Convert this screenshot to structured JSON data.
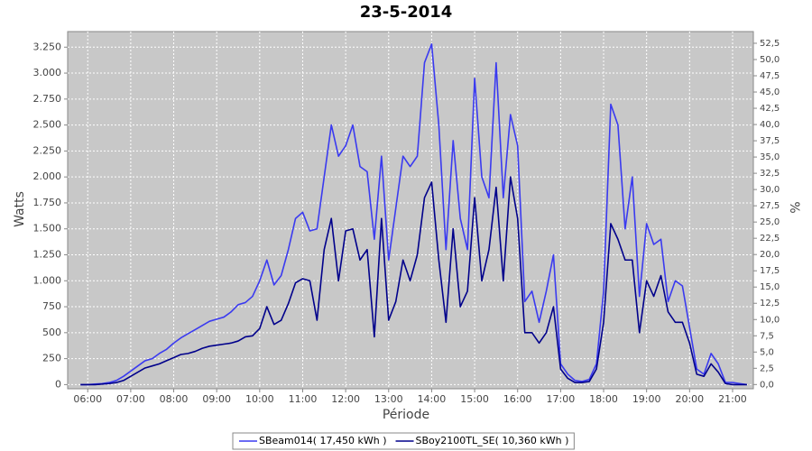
{
  "chart_data": {
    "type": "line",
    "title": "23-5-2014",
    "x_label": "Période",
    "y_label": "Watts",
    "y2_label": "%",
    "x": [
      "05:50",
      "06:00",
      "06:10",
      "06:20",
      "06:30",
      "06:40",
      "06:50",
      "07:00",
      "07:10",
      "07:20",
      "07:30",
      "07:40",
      "07:50",
      "08:00",
      "08:10",
      "08:20",
      "08:30",
      "08:40",
      "08:50",
      "09:00",
      "09:10",
      "09:20",
      "09:30",
      "09:40",
      "09:50",
      "10:00",
      "10:10",
      "10:20",
      "10:30",
      "10:40",
      "10:50",
      "11:00",
      "11:10",
      "11:20",
      "11:30",
      "11:40",
      "11:50",
      "12:00",
      "12:10",
      "12:20",
      "12:30",
      "12:40",
      "12:50",
      "13:00",
      "13:10",
      "13:20",
      "13:30",
      "13:40",
      "13:50",
      "14:00",
      "14:10",
      "14:20",
      "14:30",
      "14:40",
      "14:50",
      "15:00",
      "15:10",
      "15:20",
      "15:30",
      "15:40",
      "15:50",
      "16:00",
      "16:10",
      "16:20",
      "16:30",
      "16:40",
      "16:50",
      "17:00",
      "17:10",
      "17:20",
      "17:30",
      "17:40",
      "17:50",
      "18:00",
      "18:10",
      "18:20",
      "18:30",
      "18:40",
      "18:50",
      "19:00",
      "19:10",
      "19:20",
      "19:30",
      "19:40",
      "19:50",
      "20:00",
      "20:10",
      "20:20",
      "20:30",
      "20:40",
      "20:50",
      "21:00",
      "21:10",
      "21:20"
    ],
    "series": [
      {
        "name": "SBeam014( 17,450 kWh )",
        "color": "#3a3af0",
        "values": [
          0,
          0,
          5,
          10,
          20,
          40,
          80,
          130,
          180,
          230,
          250,
          300,
          340,
          400,
          450,
          490,
          530,
          570,
          610,
          630,
          650,
          700,
          770,
          790,
          850,
          1000,
          1200,
          960,
          1050,
          1300,
          1600,
          1660,
          1480,
          1500,
          2000,
          2500,
          2200,
          2300,
          2500,
          2100,
          2050,
          1400,
          2200,
          1200,
          1700,
          2200,
          2100,
          2200,
          3100,
          3280,
          2500,
          1300,
          2350,
          1600,
          1300,
          2950,
          2000,
          1800,
          3100,
          1800,
          2600,
          2300,
          800,
          900,
          600,
          900,
          1250,
          200,
          100,
          40,
          30,
          50,
          200,
          900,
          2700,
          2500,
          1500,
          2000,
          850,
          1550,
          1350,
          1400,
          800,
          1000,
          950,
          550,
          150,
          100,
          300,
          200,
          20,
          20,
          10,
          0
        ]
      },
      {
        "name": "SBoy2100TL_SE( 10,360 kWh )",
        "color": "#00008b",
        "values": [
          0,
          0,
          0,
          5,
          10,
          20,
          40,
          80,
          120,
          160,
          180,
          200,
          230,
          260,
          290,
          300,
          320,
          350,
          370,
          380,
          390,
          400,
          420,
          460,
          470,
          540,
          750,
          580,
          620,
          780,
          980,
          1020,
          1000,
          620,
          1300,
          1600,
          1000,
          1480,
          1500,
          1200,
          1300,
          460,
          1600,
          620,
          800,
          1200,
          1000,
          1250,
          1800,
          1950,
          1200,
          600,
          1500,
          750,
          900,
          1800,
          1000,
          1300,
          1900,
          1000,
          2000,
          1600,
          500,
          500,
          400,
          500,
          750,
          150,
          60,
          20,
          20,
          30,
          150,
          600,
          1550,
          1400,
          1200,
          1200,
          500,
          1000,
          850,
          1050,
          700,
          600,
          600,
          400,
          100,
          80,
          200,
          120,
          10,
          0,
          0,
          0
        ]
      }
    ],
    "xlim": [
      "05:32",
      "21:29"
    ],
    "xticks": [
      "06:00",
      "07:00",
      "08:00",
      "09:00",
      "10:00",
      "11:00",
      "12:00",
      "13:00",
      "14:00",
      "15:00",
      "16:00",
      "17:00",
      "18:00",
      "19:00",
      "20:00",
      "21:00"
    ],
    "ylim": [
      -40,
      3400
    ],
    "yticks": [
      0,
      250,
      500,
      750,
      {
        "value": 1000,
        "label": "1.000"
      },
      {
        "value": 1250,
        "label": "1.250"
      },
      {
        "value": 1500,
        "label": "1.500"
      },
      {
        "value": 1750,
        "label": "1.750"
      },
      {
        "value": 2000,
        "label": "2.000"
      },
      {
        "value": 2250,
        "label": "2.250"
      },
      {
        "value": 2500,
        "label": "2.500"
      },
      {
        "value": 2750,
        "label": "2.750"
      },
      {
        "value": 3000,
        "label": "3.000"
      },
      {
        "value": 3250,
        "label": "3.250"
      }
    ],
    "y2lim": [
      -0.65,
      54.3
    ],
    "y2ticks": [
      {
        "value": 0,
        "label": "0,0"
      },
      {
        "value": 2.5,
        "label": "2,5"
      },
      {
        "value": 5,
        "label": "5,0"
      },
      {
        "value": 7.5,
        "label": "7,5"
      },
      {
        "value": 10,
        "label": "10,0"
      },
      {
        "value": 12.5,
        "label": "12,5"
      },
      {
        "value": 15,
        "label": "15,0"
      },
      {
        "value": 17.5,
        "label": "17,5"
      },
      {
        "value": 20,
        "label": "20,0"
      },
      {
        "value": 22.5,
        "label": "22,5"
      },
      {
        "value": 25,
        "label": "25,0"
      },
      {
        "value": 27.5,
        "label": "27,5"
      },
      {
        "value": 30,
        "label": "30,0"
      },
      {
        "value": 32.5,
        "label": "32,5"
      },
      {
        "value": 35,
        "label": "35,0"
      },
      {
        "value": 37.5,
        "label": "37,5"
      },
      {
        "value": 40,
        "label": "40,0"
      },
      {
        "value": 42.5,
        "label": "42,5"
      },
      {
        "value": 45,
        "label": "45,0"
      },
      {
        "value": 47.5,
        "label": "47,5"
      },
      {
        "value": 50,
        "label": "50,0"
      },
      {
        "value": 52.5,
        "label": "52,5"
      }
    ],
    "grid": true,
    "legend": "bottom",
    "background": "#c8c8c8"
  }
}
